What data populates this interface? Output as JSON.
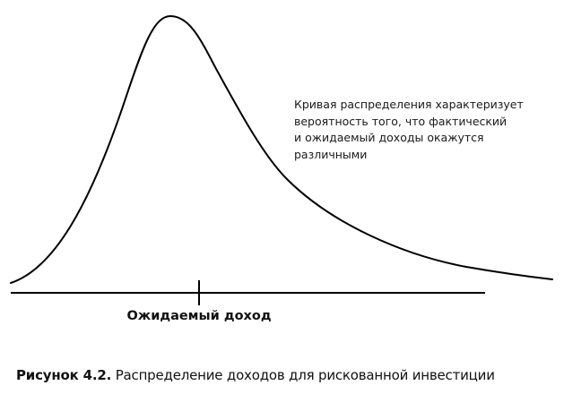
{
  "annotation": {
    "lines": [
      "Кривая распределения характеризует",
      "вероятность того, что фактический",
      "и ожидаемый доходы окажутся",
      "различными"
    ]
  },
  "axis": {
    "marker_label": "Ожидаемый доход"
  },
  "caption": {
    "label": "Рисунок 4.2.",
    "text": " Распределение доходов для рискованной инвестиции"
  },
  "colors": {
    "curve": "#000000",
    "axis": "#000000",
    "text": "#111111"
  }
}
